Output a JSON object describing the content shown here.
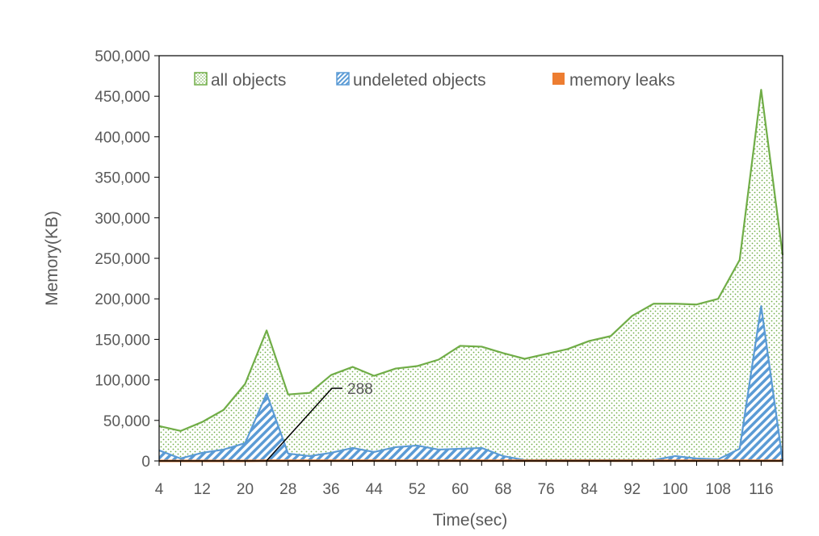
{
  "chart_data": {
    "type": "area",
    "xlabel": "Time(sec)",
    "ylabel": "Memory(KB)",
    "ylim": [
      0,
      500000
    ],
    "xlim": [
      4,
      120
    ],
    "yticks": [
      0,
      50000,
      100000,
      150000,
      200000,
      250000,
      300000,
      350000,
      400000,
      450000,
      500000
    ],
    "ytick_labels": [
      "0",
      "50,000",
      "100,000",
      "150,000",
      "200,000",
      "250,000",
      "300,000",
      "350,000",
      "400,000",
      "450,000",
      "500,000"
    ],
    "xticks": [
      4,
      12,
      20,
      28,
      36,
      44,
      52,
      60,
      68,
      76,
      84,
      92,
      100,
      108,
      116
    ],
    "xtick_labels": [
      "4",
      "12",
      "20",
      "28",
      "36",
      "44",
      "52",
      "60",
      "68",
      "76",
      "84",
      "92",
      "100",
      "108",
      "116"
    ],
    "grid": false,
    "legend_position": "top",
    "x": [
      4,
      8,
      12,
      16,
      20,
      24,
      28,
      32,
      36,
      40,
      44,
      48,
      52,
      56,
      60,
      64,
      68,
      72,
      76,
      80,
      84,
      88,
      92,
      96,
      100,
      104,
      108,
      112,
      116,
      120
    ],
    "series": [
      {
        "name": "all objects",
        "color": "#70ad47",
        "pattern": "dots",
        "values": [
          43000,
          37000,
          48000,
          63000,
          95000,
          161000,
          82000,
          84000,
          106000,
          116000,
          105000,
          114000,
          117000,
          125000,
          142000,
          141000,
          133000,
          126000,
          132000,
          138000,
          148000,
          154000,
          179000,
          194000,
          194000,
          193000,
          200000,
          248000,
          458000,
          254000
        ]
      },
      {
        "name": "undeleted objects",
        "color": "#5b9bd5",
        "pattern": "hatch",
        "values": [
          13000,
          3000,
          10000,
          14000,
          22000,
          83000,
          9000,
          6000,
          10000,
          16000,
          11000,
          17000,
          19000,
          14000,
          15000,
          16000,
          6000,
          1000,
          1000,
          1000,
          1000,
          1000,
          1000,
          1000,
          6000,
          3000,
          2000,
          15000,
          191000,
          0
        ]
      },
      {
        "name": "memory leaks",
        "color": "#ed7d31",
        "pattern": "solid",
        "values": [
          0,
          0,
          0,
          0,
          0,
          288,
          288,
          288,
          288,
          288,
          288,
          288,
          288,
          288,
          288,
          288,
          288,
          288,
          288,
          288,
          288,
          288,
          288,
          288,
          288,
          288,
          288,
          288,
          288,
          288
        ]
      }
    ],
    "annotation": {
      "text": "288",
      "x": 24,
      "y": 288
    }
  }
}
